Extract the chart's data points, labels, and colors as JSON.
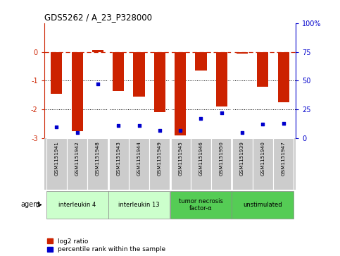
{
  "title": "GDS5262 / A_23_P328000",
  "samples": [
    "GSM1151941",
    "GSM1151942",
    "GSM1151948",
    "GSM1151943",
    "GSM1151944",
    "GSM1151949",
    "GSM1151945",
    "GSM1151946",
    "GSM1151950",
    "GSM1151939",
    "GSM1151940",
    "GSM1151947"
  ],
  "log2_ratio": [
    -1.45,
    -2.75,
    0.05,
    -1.35,
    -1.55,
    -2.1,
    -2.9,
    -0.65,
    -1.9,
    -0.05,
    -1.2,
    -1.75
  ],
  "percentile": [
    10,
    5,
    47,
    11,
    11,
    7,
    7,
    17,
    22,
    5,
    12,
    13
  ],
  "groups": [
    {
      "label": "interleukin 4",
      "start": 0,
      "end": 2,
      "color": "#ccffcc"
    },
    {
      "label": "interleukin 13",
      "start": 3,
      "end": 5,
      "color": "#ccffcc"
    },
    {
      "label": "tumor necrosis\nfactor-α",
      "start": 6,
      "end": 8,
      "color": "#55cc55"
    },
    {
      "label": "unstimulated",
      "start": 9,
      "end": 11,
      "color": "#55cc55"
    }
  ],
  "ylim_left": [
    -3.0,
    1.0
  ],
  "ylim_right": [
    0,
    100
  ],
  "bar_color": "#cc2200",
  "dot_color": "#0000cc",
  "dashed_line_color": "#cc2200",
  "background_color": "#ffffff",
  "plot_bg": "#ffffff",
  "sample_box_color": "#cccccc",
  "left_yticks": [
    -3,
    -2,
    -1,
    0
  ],
  "right_yticks": [
    0,
    25,
    50,
    75,
    100
  ],
  "right_ytick_labels": [
    "0",
    "25",
    "50",
    "75",
    "100%"
  ],
  "group_boundaries": [
    2.5,
    5.5,
    8.5
  ]
}
